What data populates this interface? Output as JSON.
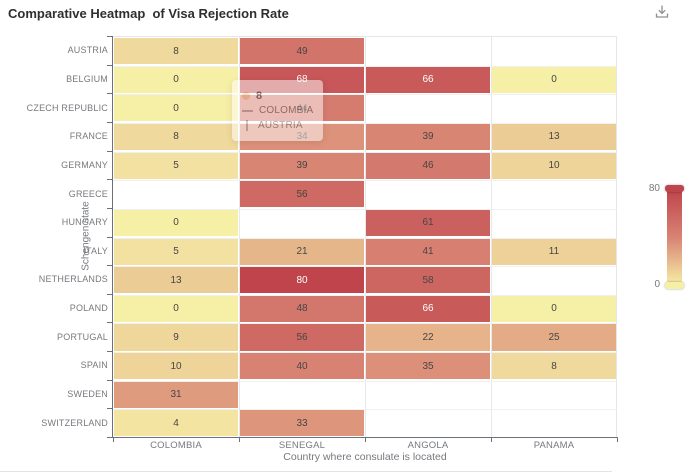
{
  "title": "Comparative Heatmap  of Visa Rejection Rate",
  "toolbox": {
    "save_as_image_icon": "download-icon"
  },
  "chart_data": {
    "type": "heatmap",
    "title": "Comparative Heatmap  of Visa Rejection Rate",
    "xlabel": "Country where consulate is located",
    "ylabel": "Schengen state",
    "x_categories": [
      "COLOMBIA",
      "SENEGAL",
      "ANGOLA",
      "PANAMA"
    ],
    "y_categories": [
      "AUSTRIA",
      "BELGIUM",
      "CZECH REPUBLIC",
      "FRANCE",
      "GERMANY",
      "GREECE",
      "HUNGARY",
      "ITALY",
      "NETHERLANDS",
      "POLAND",
      "PORTUGAL",
      "SPAIN",
      "SWEDEN",
      "SWITZERLAND"
    ],
    "values": [
      [
        8,
        49,
        null,
        null
      ],
      [
        0,
        68,
        66,
        0
      ],
      [
        0,
        44,
        null,
        null
      ],
      [
        8,
        34,
        39,
        13
      ],
      [
        5,
        39,
        46,
        10
      ],
      [
        null,
        56,
        null,
        null
      ],
      [
        0,
        null,
        61,
        null
      ],
      [
        5,
        21,
        41,
        11
      ],
      [
        13,
        80,
        58,
        null
      ],
      [
        0,
        48,
        66,
        0
      ],
      [
        9,
        56,
        22,
        25
      ],
      [
        10,
        40,
        35,
        8
      ],
      [
        31,
        null,
        null,
        null
      ],
      [
        4,
        33,
        null,
        null
      ]
    ],
    "colorbar": {
      "min": 0,
      "max": 80,
      "min_label": "0",
      "max_label": "80",
      "gradient": [
        "#f6efa6",
        "#d88273",
        "#bf444c"
      ],
      "position": "right"
    },
    "grid": true,
    "label_color_dark": "#464646",
    "label_color_light": "#ffffff",
    "white_label_threshold": 65,
    "axis_label_color": "#76797e"
  },
  "tooltip": {
    "value": "8",
    "x_category": "COLOMBIA",
    "y_category": "AUSTRIA"
  }
}
